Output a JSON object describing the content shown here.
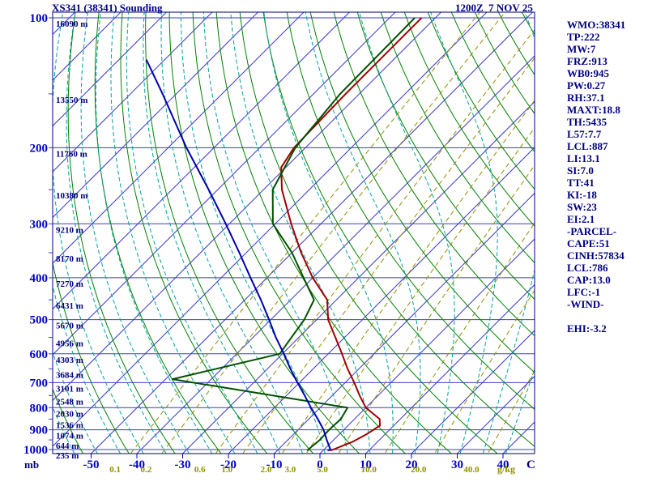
{
  "header": {
    "title": "XS341 (38341) Sounding",
    "timestamp": "1200Z  7 NOV 25"
  },
  "stats": {
    "lines": [
      "WMO:38341",
      "TP:222",
      "MW:7",
      "FRZ:913",
      "WB0:945",
      "PW:0.27",
      "RH:37.1",
      "MAXT:18.8",
      "TH:5435",
      "L57:7.7",
      "LCL:887",
      "LI:13.1",
      "SI:7.0",
      "TT:41",
      "KI:-18",
      "SW:23",
      "EI:2.1",
      "-PARCEL-",
      "CAPE:51",
      "CINH:57834",
      "LCL:786",
      "CAP:13.0",
      "LFC:-1",
      "-WIND-",
      "",
      "EHI:-3.2"
    ]
  },
  "chart_data": {
    "type": "line",
    "subtype": "skew-t-log-p-sounding",
    "title": "XS341 (38341) Sounding",
    "pressure_axis": {
      "unit": "mb",
      "ticks": [
        100,
        200,
        300,
        400,
        500,
        600,
        700,
        800,
        900,
        1000
      ],
      "scale": "log",
      "range": [
        100,
        1000
      ]
    },
    "temperature_axis": {
      "unit": "C",
      "ticks": [
        -50,
        -40,
        -30,
        -20,
        -10,
        0,
        10,
        20,
        30,
        40
      ]
    },
    "height_labels": [
      [
        100,
        "16090 m"
      ],
      [
        150,
        "13550 m"
      ],
      [
        200,
        "11760 m"
      ],
      [
        250,
        "10380 m"
      ],
      [
        300,
        "9210 m"
      ],
      [
        350,
        "8170 m"
      ],
      [
        400,
        "7270 m"
      ],
      [
        450,
        "6431 m"
      ],
      [
        500,
        "5670 m"
      ],
      [
        550,
        "4956 m"
      ],
      [
        600,
        "4303 m"
      ],
      [
        650,
        "3684 m"
      ],
      [
        700,
        "3101 m"
      ],
      [
        750,
        "2548 m"
      ],
      [
        800,
        "2030 m"
      ],
      [
        850,
        "1536 m"
      ],
      [
        900,
        "1074 m"
      ],
      [
        950,
        "644 m"
      ],
      [
        1000,
        "235 m"
      ]
    ],
    "mixing_ratio": {
      "unit": "g/kg",
      "values": [
        0.1,
        0.2,
        0.6,
        1.0,
        2.0,
        3.0,
        5.0,
        10.0,
        20.0,
        40.0
      ],
      "labels": [
        "0.1",
        "0.2",
        "0.6",
        "1.0",
        "2.0",
        "3.0",
        "5.0",
        "10.0",
        "20.0",
        "40.0"
      ]
    },
    "isotherms": {
      "min": -150,
      "max": 40,
      "step": 10
    },
    "dry_adiabats": {
      "min": 210,
      "max": 440,
      "step": 10
    },
    "moist_adiabats": {
      "min": -60,
      "max": 40,
      "step": 5
    },
    "series": [
      {
        "name": "temperature",
        "units": [
          "mb",
          "C"
        ],
        "points": [
          [
            1005,
            1.5
          ],
          [
            1000,
            2
          ],
          [
            960,
            4.5
          ],
          [
            920,
            6
          ],
          [
            880,
            7
          ],
          [
            850,
            5.5
          ],
          [
            800,
            0
          ],
          [
            750,
            -4
          ],
          [
            700,
            -8
          ],
          [
            650,
            -12.5
          ],
          [
            600,
            -17
          ],
          [
            550,
            -22
          ],
          [
            500,
            -27.5
          ],
          [
            450,
            -32
          ],
          [
            400,
            -40
          ],
          [
            350,
            -48
          ],
          [
            300,
            -56.5
          ],
          [
            250,
            -66
          ],
          [
            222,
            -71
          ],
          [
            200,
            -72.5
          ],
          [
            150,
            -73
          ],
          [
            100,
            -73
          ]
        ]
      },
      {
        "name": "dewpoint",
        "units": [
          "mb",
          "C"
        ],
        "points": [
          [
            1005,
            -3.5
          ],
          [
            950,
            -3
          ],
          [
            900,
            -3.2
          ],
          [
            850,
            -3
          ],
          [
            800,
            -4
          ],
          [
            687,
            -48.5
          ],
          [
            600,
            -30.6
          ],
          [
            550,
            -31.6
          ],
          [
            500,
            -32.7
          ],
          [
            450,
            -34.9
          ],
          [
            400,
            -42
          ],
          [
            350,
            -50
          ],
          [
            300,
            -60.5
          ],
          [
            250,
            -68
          ],
          [
            200,
            -72.2
          ],
          [
            150,
            -74.2
          ],
          [
            100,
            -74.5
          ]
        ]
      },
      {
        "name": "parcel",
        "units": [
          "mb",
          "C"
        ],
        "points": [
          [
            1005,
            1
          ],
          [
            1000,
            1.4
          ],
          [
            950,
            -1.5
          ],
          [
            900,
            -4.4
          ],
          [
            850,
            -8
          ],
          [
            800,
            -12
          ],
          [
            750,
            -16
          ],
          [
            700,
            -20.4
          ],
          [
            650,
            -25
          ],
          [
            600,
            -29.7
          ],
          [
            550,
            -35
          ],
          [
            500,
            -40.4
          ],
          [
            450,
            -46.5
          ],
          [
            400,
            -53.6
          ],
          [
            350,
            -61.5
          ],
          [
            300,
            -70.8
          ],
          [
            250,
            -82
          ],
          [
            200,
            -96
          ],
          [
            150,
            -113
          ],
          [
            125,
            -124
          ]
        ]
      }
    ],
    "colors": {
      "grid": "#3a3ad0",
      "dry_adiabat": "#008000",
      "moist_adiabat": "#00a0a0",
      "mixing": "#8f8f00",
      "axis_blue": "#0000c8",
      "navy": "#000080",
      "temperature": "#a00000",
      "dewpoint": "#005000",
      "parcel": "#0000b0"
    }
  }
}
